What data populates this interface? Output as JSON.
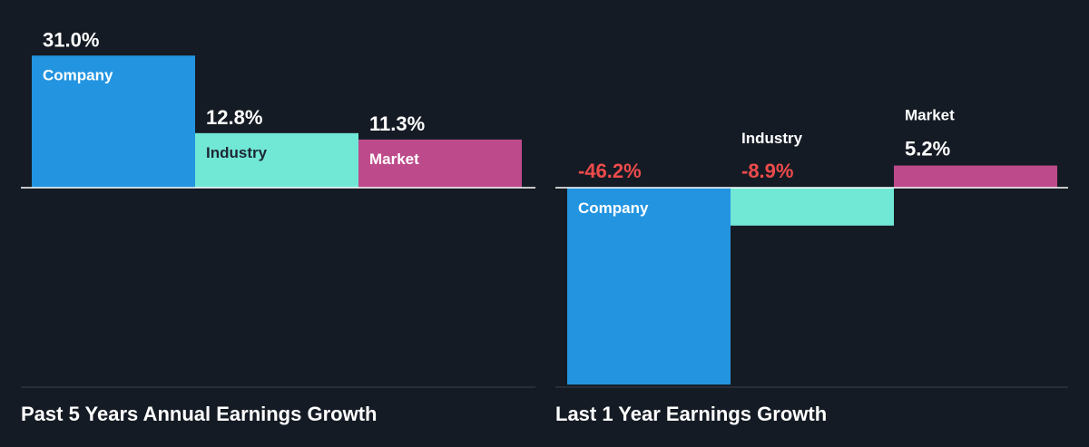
{
  "colors": {
    "background": "#151b24",
    "company": "#2394e0",
    "industry": "#71e7d6",
    "market": "#bd4a8a",
    "positive_label": "#ffffff",
    "negative_label": "#ee4b4b",
    "baseline": "#ffffff",
    "divider": "#39414c"
  },
  "chart_data": [
    {
      "type": "bar",
      "title": "Past 5 Years Annual Earnings Growth",
      "categories": [
        "Company",
        "Industry",
        "Market"
      ],
      "values": [
        31.0,
        12.8,
        11.3
      ],
      "value_labels": [
        "31.0%",
        "12.8%",
        "11.3%"
      ],
      "unit": "%",
      "xlabel": "",
      "ylabel": "",
      "grid": false,
      "legend": "none"
    },
    {
      "type": "bar",
      "title": "Last 1 Year Earnings Growth",
      "categories": [
        "Company",
        "Industry",
        "Market"
      ],
      "values": [
        -46.2,
        -8.9,
        5.2
      ],
      "value_labels": [
        "-46.2%",
        "-8.9%",
        "5.2%"
      ],
      "unit": "%",
      "xlabel": "",
      "ylabel": "",
      "grid": false,
      "legend": "none"
    }
  ]
}
